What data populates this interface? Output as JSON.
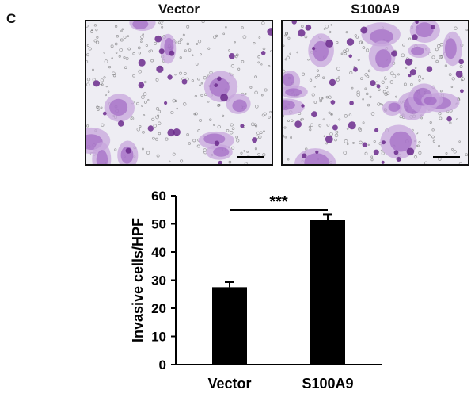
{
  "panel_label": "C",
  "images": [
    {
      "title": "Vector"
    },
    {
      "title": "S100A9"
    }
  ],
  "colors": {
    "stain_dark": "#6b2a8c",
    "stain_mid": "#9a5cc0",
    "stain_light": "#c7a6dc",
    "bar": "#000000"
  },
  "chart_data": {
    "type": "bar",
    "categories": [
      "Vector",
      "S100A9"
    ],
    "values": [
      27.5,
      51.5
    ],
    "error": [
      1.8,
      1.9
    ],
    "ylabel": "Invasive cells/HPF",
    "ylim": [
      0,
      60
    ],
    "yticks": [
      "0",
      "10",
      "20",
      "30",
      "40",
      "50",
      "60"
    ],
    "annotation": "***",
    "grid": false
  }
}
